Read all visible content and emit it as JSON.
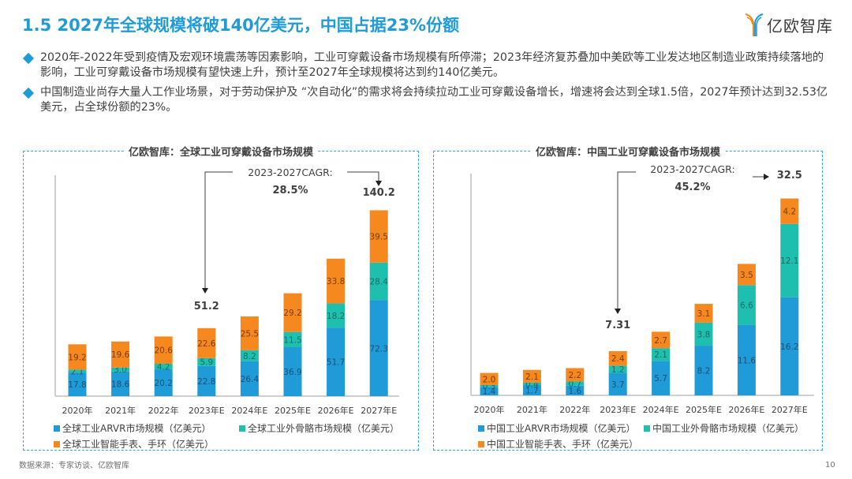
{
  "header": {
    "title": "1.5 2027年全球规模将破140亿美元，中国占据23%份额",
    "logo_text": "亿欧智库"
  },
  "bullets": [
    "2020年-2022年受到疫情及宏观环境震荡等因素影响，工业可穿戴设备市场规模有所停滞；2023年经济复苏叠加中美欧等工业发达地区制造业政策持续落地的影响，工业可穿戴设备市场规模有望快速上升，预计至2027年全球规模将达到约140亿美元。",
    "中国制造业尚存大量人工作业场景，对于劳动保护及 “次自动化”的需求将会持续拉动工业可穿戴设备增长，增速将会达到全球1.5倍，2027年预计达到32.53亿美元，占全球份额的23%。"
  ],
  "colors": {
    "arvr": "#1f9bd7",
    "exo": "#1fbfb0",
    "watch": "#f5891f",
    "accent": "#1f9bd7",
    "frame": "#2fa9c9"
  },
  "chart_data": [
    {
      "type": "bar",
      "stacked": true,
      "title": "亿欧智库：全球工业可穿戴设备市场规模",
      "categories": [
        "2020年",
        "2021年",
        "2022年",
        "2023年E",
        "2024年E",
        "2025年E",
        "2026年E",
        "2027年E"
      ],
      "series": [
        {
          "name": "全球工业ARVR市场规模（亿美元）",
          "values": [
            17.8,
            18.6,
            20.2,
            22.8,
            26.4,
            36.9,
            51.7,
            72.3
          ]
        },
        {
          "name": "全球工业外骨骼市场规模（亿美元）",
          "values": [
            2.1,
            3.0,
            4.2,
            5.9,
            8.2,
            11.5,
            18.2,
            28.4
          ]
        },
        {
          "name": "全球工业智能手表、手环（亿美元）",
          "values": [
            19.2,
            19.6,
            20.6,
            22.6,
            25.5,
            29.2,
            33.8,
            39.5
          ]
        }
      ],
      "annotations": {
        "cagr_label": "2023-2027CAGR:",
        "cagr_value": "28.5%",
        "start_total": "51.2",
        "end_total": "140.2"
      },
      "xlabel": "",
      "ylabel": "",
      "ylim": [
        0,
        150
      ],
      "grid": false,
      "legend": "bottom"
    },
    {
      "type": "bar",
      "stacked": true,
      "title": "亿欧智库：中国工业可穿戴设备市场规模",
      "categories": [
        "2020年",
        "2021年",
        "2022年",
        "2023年E",
        "2024年E",
        "2025年E",
        "2026年E",
        "2027年E"
      ],
      "series": [
        {
          "name": "中国工业ARVR市场规模（亿美元）",
          "values": [
            1.4,
            1.7,
            1.6,
            3.7,
            5.7,
            8.2,
            11.6,
            16.2
          ]
        },
        {
          "name": "中国工业外骨骼市场规模（亿美元）",
          "values": [
            0.3,
            0.4,
            0.7,
            1.2,
            2.1,
            3.8,
            6.6,
            12.1
          ]
        },
        {
          "name": "中国工业智能手表、手环（亿美元）",
          "values": [
            2.0,
            2.1,
            2.2,
            2.4,
            2.7,
            3.1,
            3.5,
            4.2
          ]
        }
      ],
      "annotations": {
        "cagr_label": "2023-2027CAGR:",
        "cagr_value": "45.2%",
        "start_total": "7.31",
        "end_total": "32.5"
      },
      "xlabel": "",
      "ylabel": "",
      "ylim": [
        0,
        34
      ],
      "grid": false,
      "legend": "bottom"
    }
  ],
  "footer": {
    "source": "数据来源：专家访谈、亿欧智库",
    "page_number": "10"
  }
}
